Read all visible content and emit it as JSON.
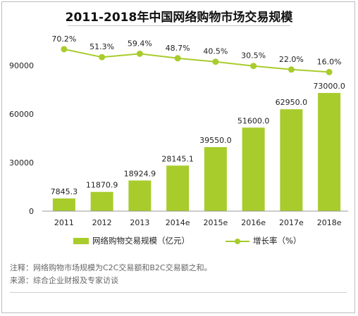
{
  "chart_data": {
    "type": "bar",
    "title": "2011-2018年中国网络购物市场交易规模",
    "categories": [
      "2011",
      "2012",
      "2013",
      "2014e",
      "2015e",
      "2016e",
      "2017e",
      "2018e"
    ],
    "series": [
      {
        "name": "网络购物交易规模（亿元）",
        "type": "bar",
        "values": [
          7845.3,
          11870.9,
          18924.9,
          28145.1,
          39550.0,
          51600.0,
          62950.0,
          73000.0
        ],
        "labels": [
          "7845.3",
          "11870.9",
          "18924.9",
          "28145.1",
          "39550.0",
          "51600.0",
          "62950.0",
          "73000.0"
        ]
      },
      {
        "name": "增长率（%）",
        "type": "line",
        "values": [
          70.2,
          51.3,
          59.4,
          48.7,
          40.5,
          30.5,
          22.0,
          16.0
        ],
        "labels": [
          "70.2%",
          "51.3%",
          "59.4%",
          "48.7%",
          "40.5%",
          "30.5%",
          "22.0%",
          "16.0%"
        ]
      }
    ],
    "y_ticks": [
      "0",
      "30000",
      "60000",
      "90000"
    ],
    "ylim": [
      0,
      100000
    ],
    "color": "#a8cc2c",
    "grid": false,
    "legend_position": "bottom"
  },
  "legend": {
    "bar_label": "网络购物交易规模（亿元）",
    "line_label": "增长率（%）"
  },
  "notes": {
    "note": "注释：网络购物市场规模为C2C交易额和B2C交易额之和。",
    "source": "来源：综合企业财报及专家访谈"
  }
}
